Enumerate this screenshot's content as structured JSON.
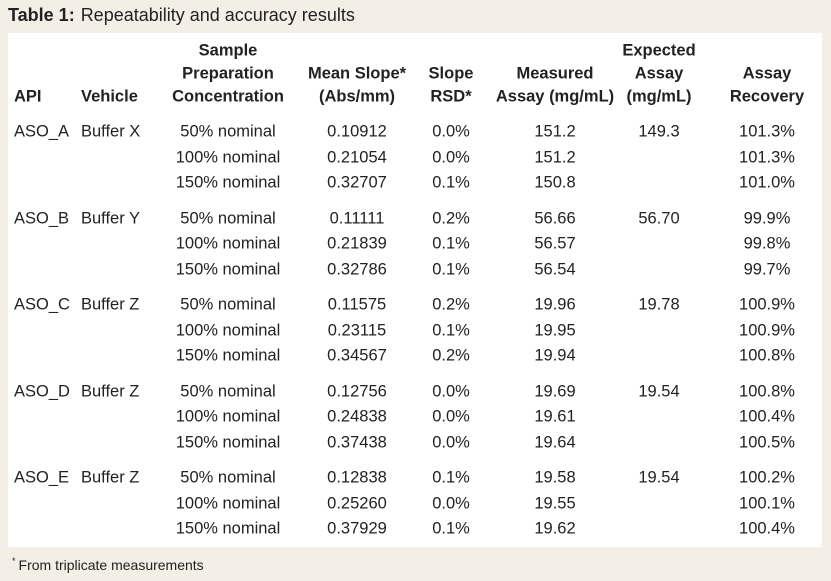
{
  "title": {
    "label": "Table 1:",
    "text": "Repeatability and accuracy results"
  },
  "header": [
    [
      "API"
    ],
    [
      "Vehicle"
    ],
    [
      "Sample",
      "Preparation",
      "Concentration"
    ],
    [
      "Mean Slope*",
      "(Abs/mm)"
    ],
    [
      "Slope",
      "RSD*"
    ],
    [
      "Measured",
      "Assay (mg/mL)"
    ],
    [
      "Expected",
      "Assay",
      "(mg/mL)"
    ],
    [
      "Assay",
      "Recovery"
    ]
  ],
  "groups": [
    {
      "api": "ASO_A",
      "vehicle": "Buffer X",
      "expected": "149.3",
      "rows": [
        [
          "50% nominal",
          "0.10912",
          "0.0%",
          "151.2",
          "101.3%"
        ],
        [
          "100% nominal",
          "0.21054",
          "0.0%",
          "151.2",
          "101.3%"
        ],
        [
          "150% nominal",
          "0.32707",
          "0.1%",
          "150.8",
          "101.0%"
        ]
      ]
    },
    {
      "api": "ASO_B",
      "vehicle": "Buffer Y",
      "expected": "56.70",
      "rows": [
        [
          "50% nominal",
          "0.11111",
          "0.2%",
          "56.66",
          "99.9%"
        ],
        [
          "100% nominal",
          "0.21839",
          "0.1%",
          "56.57",
          "99.8%"
        ],
        [
          "150% nominal",
          "0.32786",
          "0.1%",
          "56.54",
          "99.7%"
        ]
      ]
    },
    {
      "api": "ASO_C",
      "vehicle": "Buffer Z",
      "expected": "19.78",
      "rows": [
        [
          "50% nominal",
          "0.11575",
          "0.2%",
          "19.96",
          "100.9%"
        ],
        [
          "100% nominal",
          "0.23115",
          "0.1%",
          "19.95",
          "100.9%"
        ],
        [
          "150% nominal",
          "0.34567",
          "0.2%",
          "19.94",
          "100.8%"
        ]
      ]
    },
    {
      "api": "ASO_D",
      "vehicle": "Buffer Z",
      "expected": "19.54",
      "rows": [
        [
          "50% nominal",
          "0.12756",
          "0.0%",
          "19.69",
          "100.8%"
        ],
        [
          "100% nominal",
          "0.24838",
          "0.0%",
          "19.61",
          "100.4%"
        ],
        [
          "150% nominal",
          "0.37438",
          "0.0%",
          "19.64",
          "100.5%"
        ]
      ]
    },
    {
      "api": "ASO_E",
      "vehicle": "Buffer Z",
      "expected": "19.54",
      "rows": [
        [
          "50% nominal",
          "0.12838",
          "0.1%",
          "19.58",
          "100.2%"
        ],
        [
          "100% nominal",
          "0.25260",
          "0.0%",
          "19.55",
          "100.1%"
        ],
        [
          "150% nominal",
          "0.37929",
          "0.1%",
          "19.62",
          "100.4%"
        ]
      ]
    }
  ],
  "footnote": {
    "marker": "*",
    "text": "From triplicate measurements"
  }
}
